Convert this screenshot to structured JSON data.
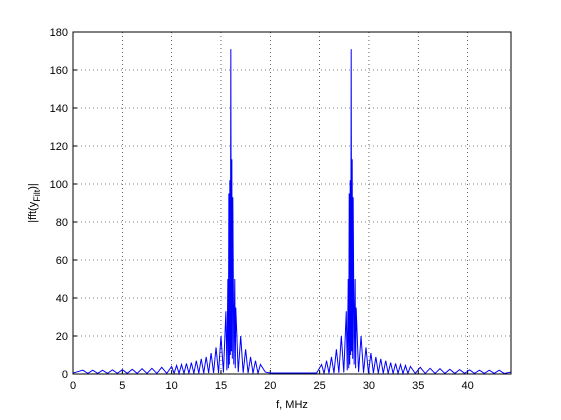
{
  "chart_data": {
    "type": "line",
    "xlabel": "f, MHz",
    "ylabel": {
      "prefix": "|fft(y",
      "subscript": "Filt",
      "suffix": ")|"
    },
    "x": [
      0,
      1,
      1.5,
      2,
      2.5,
      3,
      3.5,
      4,
      4.5,
      5,
      5.5,
      6,
      6.5,
      7,
      7.5,
      8,
      8.5,
      9,
      9.5,
      10,
      10.25,
      10.5,
      10.75,
      11,
      11.25,
      11.5,
      11.75,
      12,
      12.25,
      12.5,
      12.75,
      13,
      13.25,
      13.5,
      13.75,
      14,
      14.25,
      14.5,
      14.75,
      15,
      15.25,
      15.5,
      15.6,
      15.7,
      15.75,
      15.8,
      15.85,
      15.9,
      15.95,
      16,
      16.05,
      16.1,
      16.15,
      16.2,
      16.3,
      16.4,
      16.45,
      16.5,
      16.75,
      17,
      17.25,
      17.5,
      17.75,
      18,
      18.25,
      18.5,
      18.75,
      19,
      19.5,
      20,
      24.7,
      25.2,
      25.45,
      25.7,
      25.95,
      26.2,
      26.45,
      26.7,
      26.95,
      27.2,
      27.45,
      27.7,
      27.8,
      27.9,
      27.95,
      28,
      28.05,
      28.1,
      28.15,
      28.2,
      28.25,
      28.3,
      28.35,
      28.4,
      28.5,
      28.6,
      28.65,
      28.7,
      28.95,
      29.2,
      29.45,
      29.7,
      29.95,
      30.2,
      30.45,
      30.7,
      30.95,
      31.2,
      31.45,
      31.7,
      31.95,
      32.2,
      32.45,
      32.7,
      32.95,
      33.2,
      33.45,
      33.7,
      33.95,
      34.2,
      34.7,
      35.2,
      35.7,
      36.2,
      36.7,
      37.2,
      37.7,
      38.2,
      38.7,
      39.2,
      39.7,
      40.2,
      40.7,
      41.2,
      41.7,
      42.2,
      42.7,
      43.2,
      43.7,
      44.4
    ],
    "series": [
      {
        "color": "#0000ff",
        "values": [
          0.5,
          2,
          0.3,
          2,
          0.3,
          2,
          0.3,
          2.2,
          0.3,
          2.3,
          0.3,
          2.5,
          0.3,
          2.8,
          0.3,
          3,
          0.3,
          3.5,
          0.3,
          4,
          0.3,
          4.5,
          0.3,
          5,
          0.3,
          5.5,
          0.3,
          6,
          0.3,
          7,
          0.4,
          8,
          0.4,
          9,
          0.5,
          11,
          0.5,
          14,
          0.5,
          20,
          0.8,
          33,
          2,
          50,
          3,
          95,
          5,
          102,
          10,
          171,
          12,
          113,
          8,
          93,
          5,
          50,
          3,
          35,
          1,
          20,
          0.6,
          13,
          0.5,
          9,
          0.4,
          7,
          0.3,
          5,
          1,
          0.5,
          0.5,
          5,
          0.3,
          7,
          0.4,
          9,
          0.5,
          13,
          0.6,
          20,
          0.8,
          33,
          2,
          50,
          3,
          95,
          5,
          102,
          10,
          171,
          12,
          113,
          8,
          93,
          5,
          50,
          3,
          35,
          1,
          20,
          0.6,
          14,
          0.5,
          11,
          0.5,
          9,
          0.4,
          8,
          0.4,
          7,
          0.3,
          6,
          0.3,
          5.5,
          0.3,
          5,
          0.3,
          4.5,
          0.3,
          4,
          0.3,
          3.5,
          0.3,
          3,
          0.3,
          2.8,
          0.3,
          2.5,
          0.3,
          2.3,
          0.3,
          2.2,
          0.3,
          2,
          0.3,
          2,
          0.3,
          2,
          0.3,
          1
        ]
      }
    ],
    "xlim": [
      0,
      44.4
    ],
    "ylim": [
      0,
      180
    ],
    "xticks": [
      0,
      5,
      10,
      15,
      20,
      25,
      30,
      35,
      40
    ],
    "yticks": [
      0,
      20,
      40,
      60,
      80,
      100,
      120,
      140,
      160,
      180
    ],
    "grid": true
  }
}
